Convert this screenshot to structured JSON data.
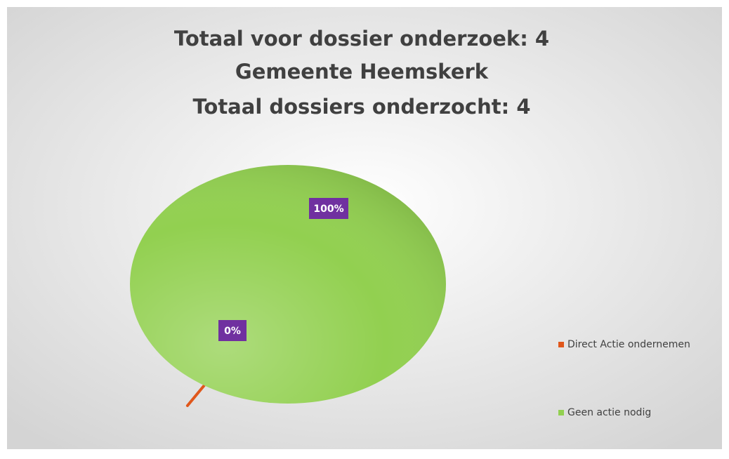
{
  "chart_data": {
    "type": "pie",
    "title": [
      "Totaal voor dossier onderzoek: 4",
      "Gemeente Heemskerk",
      "Totaal dossiers onderzocht: 4"
    ],
    "categories": [
      "Direct Actie ondernemen",
      "Geen actie nodig"
    ],
    "values": [
      0,
      100
    ],
    "value_labels": [
      "0%",
      "100%"
    ],
    "colors": [
      "#e0571b",
      "#92d050"
    ],
    "label_color": "#7030a0",
    "legend": "right"
  }
}
